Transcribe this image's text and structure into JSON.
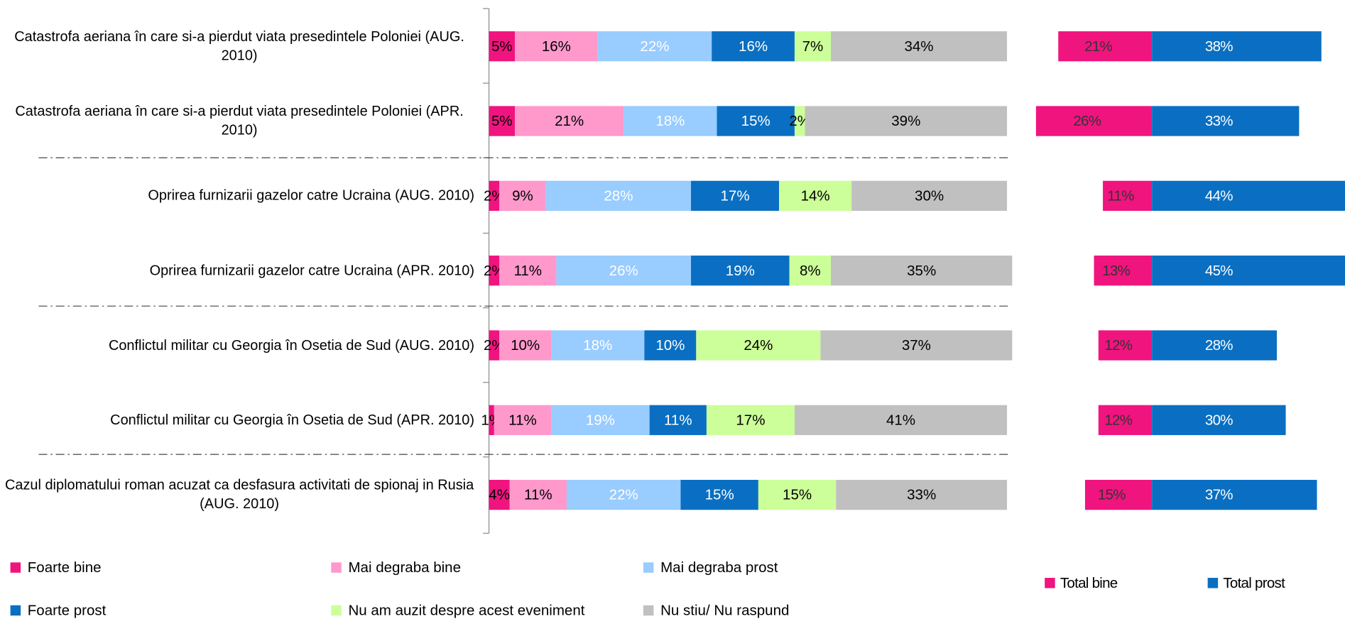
{
  "chart_data": [
    {
      "type": "bar",
      "orientation": "horizontal",
      "stacked": true,
      "xlim": [
        0,
        100
      ],
      "categories": [
        "Catastrofa aeriana în care si-a pierdut viata presedintele Poloniei (AUG. 2010)",
        "Catastrofa aeriana în care si-a pierdut viata presedintele Poloniei (APR. 2010)",
        "Oprirea furnizarii gazelor catre Ucraina (AUG. 2010)",
        "Oprirea furnizarii gazelor catre Ucraina (APR. 2010)",
        "Conflictul militar cu Georgia în Osetia de Sud (AUG. 2010)",
        "Conflictul militar cu Georgia în Osetia de Sud (APR. 2010)",
        "Cazul diplomatului roman acuzat ca desfasura activitati de spionaj in Rusia (AUG. 2010)"
      ],
      "series": [
        {
          "name": "Foarte bine",
          "color": "#f0147f",
          "label_color": "#000000",
          "values": [
            5,
            5,
            2,
            2,
            2,
            1,
            4
          ],
          "value_labels": [
            "5%",
            "5%",
            "2%",
            "2%",
            "2%",
            "1%",
            "4%"
          ]
        },
        {
          "name": "Mai degraba bine",
          "color": "#ff99cc",
          "label_color": "#000000",
          "values": [
            16,
            21,
            9,
            11,
            10,
            11,
            11
          ],
          "value_labels": [
            "16%",
            "21%",
            "9%",
            "11%",
            "10%",
            "11%",
            "11%"
          ]
        },
        {
          "name": "Mai degraba prost",
          "color": "#99ccff",
          "label_color": "#ffffff",
          "values": [
            22,
            18,
            28,
            26,
            18,
            19,
            22
          ],
          "value_labels": [
            "22%",
            "18%",
            "28%",
            "26%",
            "18%",
            "19%",
            "22%"
          ]
        },
        {
          "name": "Foarte prost",
          "color": "#0a6fc2",
          "label_color": "#ffffff",
          "values": [
            16,
            15,
            17,
            19,
            10,
            11,
            15
          ],
          "value_labels": [
            "16%",
            "15%",
            "17%",
            "19%",
            "10%",
            "11%",
            "15%"
          ]
        },
        {
          "name": "Nu am auzit despre acest eveniment",
          "color": "#ccff99",
          "label_color": "#000000",
          "values": [
            7,
            2,
            14,
            8,
            24,
            17,
            15
          ],
          "value_labels": [
            "7%",
            "2%",
            "14%",
            "8%",
            "24%",
            "17%",
            "15%"
          ]
        },
        {
          "name": "Nu stiu/ Nu raspund",
          "color": "#c0c0c0",
          "label_color": "#000000",
          "values": [
            34,
            39,
            30,
            35,
            37,
            41,
            33
          ],
          "value_labels": [
            "34%",
            "39%",
            "30%",
            "35%",
            "37%",
            "41%",
            "33%"
          ]
        }
      ]
    },
    {
      "type": "diverging_bar",
      "orientation": "horizontal",
      "series": [
        {
          "name": "Total bine",
          "color": "#f0147f",
          "label_color": "#333333",
          "direction": "left",
          "values": [
            21,
            26,
            11,
            13,
            12,
            12,
            15
          ],
          "value_labels": [
            "21%",
            "26%",
            "11%",
            "13%",
            "12%",
            "12%",
            "15%"
          ]
        },
        {
          "name": "Total prost",
          "color": "#0a6fc2",
          "label_color": "#ffffff",
          "direction": "right",
          "values": [
            38,
            33,
            44,
            45,
            28,
            30,
            37
          ],
          "value_labels": [
            "38%",
            "33%",
            "44%",
            "45%",
            "28%",
            "30%",
            "37%"
          ]
        }
      ]
    }
  ]
}
